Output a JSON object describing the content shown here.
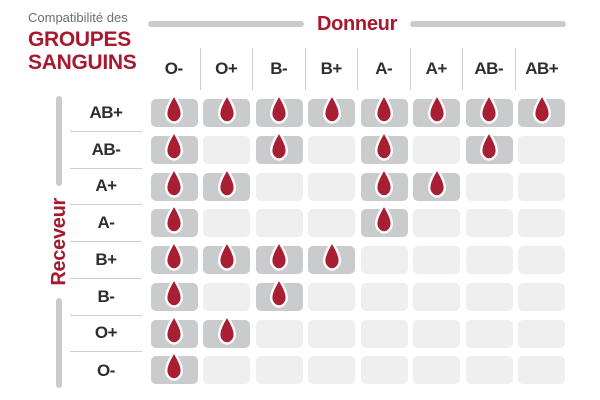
{
  "title": {
    "kicker": "Compatibilité des",
    "line1": "GROUPES",
    "line2": "SANGUINS"
  },
  "axes": {
    "donor": "Donneur",
    "receiver": "Receveur"
  },
  "chart_data": {
    "type": "heatmap",
    "title": "Compatibilité des groupes sanguins",
    "x_axis_label": "Donneur",
    "y_axis_label": "Receveur",
    "columns": [
      "O-",
      "O+",
      "B-",
      "B+",
      "A-",
      "A+",
      "AB-",
      "AB+"
    ],
    "rows": [
      "AB+",
      "AB-",
      "A+",
      "A-",
      "B+",
      "B-",
      "O+",
      "O-"
    ],
    "matrix": [
      [
        1,
        1,
        1,
        1,
        1,
        1,
        1,
        1
      ],
      [
        1,
        0,
        1,
        0,
        1,
        0,
        1,
        0
      ],
      [
        1,
        1,
        0,
        0,
        1,
        1,
        0,
        0
      ],
      [
        1,
        0,
        0,
        0,
        1,
        0,
        0,
        0
      ],
      [
        1,
        1,
        1,
        1,
        0,
        0,
        0,
        0
      ],
      [
        1,
        0,
        1,
        0,
        0,
        0,
        0,
        0
      ],
      [
        1,
        1,
        0,
        0,
        0,
        0,
        0,
        0
      ],
      [
        1,
        0,
        0,
        0,
        0,
        0,
        0,
        0
      ]
    ],
    "marker": "blood-drop",
    "cell_meaning": "1 = compatible (goutte de sang affichée), 0 = incompatible (case vide)",
    "legend_position": "none",
    "grid": "off"
  },
  "colors": {
    "accent_red": "#A6192E",
    "drop_red": "#A81E33",
    "text_dark": "#2D2E30",
    "text_gray": "#6D6E71",
    "bar_gray": "#C9CBCD",
    "cell_filled": "#C9CBCD",
    "cell_empty": "#EFEFF0",
    "separator": "#CDCECF"
  }
}
